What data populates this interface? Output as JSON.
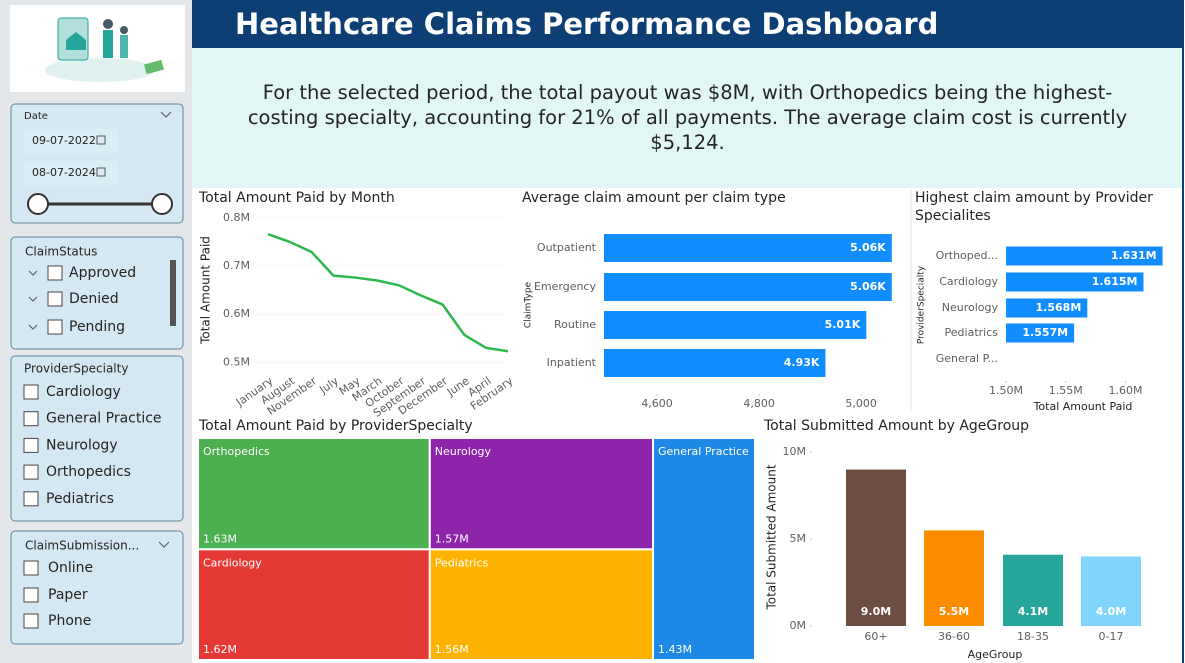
{
  "header": {
    "title": "Healthcare Claims Performance Dashboard"
  },
  "narrative": "For the selected period, the total payout was $8M, with Orthopedics being the highest-costing specialty, accounting for 21% of all payments. The average claim cost is currently $5,124.",
  "slicers": {
    "date": {
      "title": "Date",
      "start": "09-07-2022",
      "end": "08-07-2024"
    },
    "claim_status": {
      "title": "ClaimStatus",
      "items": [
        "Approved",
        "Denied",
        "Pending"
      ]
    },
    "provider_specialty": {
      "title": "ProviderSpecialty",
      "items": [
        "Cardiology",
        "General Practice",
        "Neurology",
        "Orthopedics",
        "Pediatrics"
      ]
    },
    "claim_submission": {
      "title": "ClaimSubmission...",
      "items": [
        "Online",
        "Paper",
        "Phone"
      ]
    }
  },
  "chart_data": [
    {
      "type": "line",
      "title": "Total Amount Paid by Month",
      "ylabel": "Total Amount Paid",
      "categories": [
        "January",
        "August",
        "November",
        "July",
        "May",
        "March",
        "October",
        "September",
        "December",
        "June",
        "April",
        "February"
      ],
      "values": [
        766000,
        750000,
        729000,
        680000,
        676000,
        670000,
        660000,
        639000,
        620000,
        557000,
        530000,
        523000
      ],
      "color": "#2db84d",
      "ylim": [
        480000,
        810000
      ],
      "yticks": [
        {
          "value": 500000,
          "label": "0.5M"
        },
        {
          "value": 600000,
          "label": "0.6M"
        },
        {
          "value": 700000,
          "label": "0.7M"
        },
        {
          "value": 800000,
          "label": "0.8M"
        }
      ],
      "grid": true
    },
    {
      "type": "hbar",
      "title": "Average claim amount per claim type",
      "ylabel": "ClaimType",
      "categories": [
        "Outpatient",
        "Emergency",
        "Routine",
        "Inpatient"
      ],
      "values": [
        5060,
        5060,
        5010,
        4930
      ],
      "value_labels": [
        "5.06K",
        "5.06K",
        "5.01K",
        "4.93K"
      ],
      "color": "#118dff",
      "xlim": [
        4496,
        5080
      ],
      "xticks": [
        {
          "value": 4600,
          "label": "4,600"
        },
        {
          "value": 4800,
          "label": "4,800"
        },
        {
          "value": 5000,
          "label": "5,000"
        }
      ]
    },
    {
      "type": "hbar",
      "title": "Highest claim amount by Provider Specialites",
      "xlabel": "Total Amount Paid",
      "ylabel": "ProviderSpecialty",
      "categories": [
        "Orthoped...",
        "Cardiology",
        "Neurology",
        "Pediatrics",
        "General P..."
      ],
      "values": [
        1631000,
        1615000,
        1568000,
        1557000,
        null
      ],
      "value_labels": [
        "1.631M",
        "1.615M",
        "1.568M",
        "1.557M",
        null
      ],
      "color": "#118dff",
      "xlim": [
        1500000,
        1633000
      ],
      "xticks": [
        {
          "value": 1500000,
          "label": "1.50M"
        },
        {
          "value": 1550000,
          "label": "1.55M"
        },
        {
          "value": 1600000,
          "label": "1.60M"
        }
      ]
    },
    {
      "type": "treemap",
      "title": "Total Amount Paid by ProviderSpecialty",
      "categories": [
        "Orthopedics",
        "Cardiology",
        "Neurology",
        "Pediatrics",
        "General Practice"
      ],
      "values": [
        1630000,
        1620000,
        1570000,
        1560000,
        1430000
      ],
      "value_labels": [
        "1.63M",
        "1.62M",
        "1.57M",
        "1.56M",
        "1.43M"
      ],
      "colors": [
        "#4caf50",
        "#e53935",
        "#8e24aa",
        "#ffb300",
        "#1e88e5"
      ]
    },
    {
      "type": "bar",
      "title": "Total Submitted Amount by AgeGroup",
      "xlabel": "AgeGroup",
      "ylabel": "Total Submitted Amount",
      "categories": [
        "60+",
        "36-60",
        "18-35",
        "0-17"
      ],
      "values": [
        9000000,
        5500000,
        4100000,
        4000000
      ],
      "value_labels": [
        "9.0M",
        "5.5M",
        "4.1M",
        "4.0M"
      ],
      "colors": [
        "#6d4c41",
        "#fb8c00",
        "#26a69a",
        "#81d4fa"
      ],
      "ylim": [
        0,
        10700000
      ],
      "yticks": [
        {
          "value": 0,
          "label": "0M"
        },
        {
          "value": 5000000,
          "label": "5M"
        },
        {
          "value": 10000000,
          "label": "10M"
        }
      ]
    }
  ]
}
